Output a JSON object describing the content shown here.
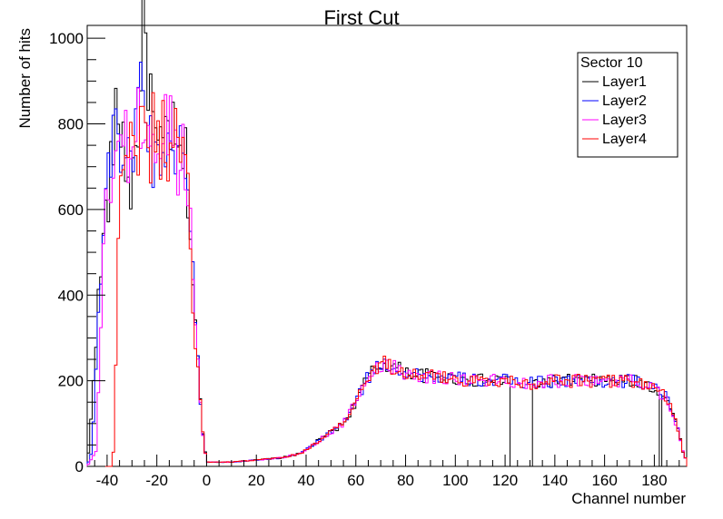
{
  "chart_data": {
    "type": "line",
    "title": "First Cut",
    "xlabel": "Channel number",
    "ylabel": "Number of hits",
    "xlim": [
      -48,
      193
    ],
    "ylim": [
      0,
      1030
    ],
    "x_ticks": [
      -40,
      -20,
      0,
      20,
      40,
      60,
      80,
      100,
      120,
      140,
      160,
      180
    ],
    "y_ticks": [
      0,
      200,
      400,
      600,
      800,
      1000
    ],
    "bin_width": 1,
    "grid": false,
    "legend": {
      "title": "Sector 10",
      "placement": "top-right",
      "entries": [
        "Layer1",
        "Layer2",
        "Layer3",
        "Layer4"
      ]
    },
    "series": [
      {
        "name": "Layer1",
        "color": "#000000",
        "profile": [
          [
            -48,
            0
          ],
          [
            -47,
            60
          ],
          [
            -45,
            260
          ],
          [
            -43,
            420
          ],
          [
            -41,
            560
          ],
          [
            -39,
            660
          ],
          [
            -37,
            780
          ],
          [
            -35,
            830
          ],
          [
            -33,
            740
          ],
          [
            -31,
            640
          ],
          [
            -29,
            700
          ],
          [
            -27,
            860
          ],
          [
            -25,
            1030
          ],
          [
            -23,
            900
          ],
          [
            -21,
            760
          ],
          [
            -19,
            700
          ],
          [
            -17,
            760
          ],
          [
            -15,
            820
          ],
          [
            -13,
            740
          ],
          [
            -11,
            700
          ],
          [
            -9,
            740
          ],
          [
            -7,
            620
          ],
          [
            -6,
            480
          ],
          [
            -4,
            300
          ],
          [
            -2,
            100
          ],
          [
            0,
            10
          ],
          [
            10,
            10
          ],
          [
            20,
            15
          ],
          [
            30,
            20
          ],
          [
            38,
            30
          ],
          [
            45,
            60
          ],
          [
            50,
            80
          ],
          [
            55,
            100
          ],
          [
            60,
            150
          ],
          [
            64,
            200
          ],
          [
            68,
            230
          ],
          [
            72,
            240
          ],
          [
            80,
            220
          ],
          [
            90,
            210
          ],
          [
            100,
            205
          ],
          [
            110,
            200
          ],
          [
            120,
            200
          ],
          [
            130,
            195
          ],
          [
            140,
            200
          ],
          [
            150,
            200
          ],
          [
            160,
            200
          ],
          [
            170,
            200
          ],
          [
            178,
            190
          ],
          [
            185,
            160
          ],
          [
            190,
            80
          ],
          [
            192,
            20
          ]
        ],
        "dips": [
          [
            122,
            130
          ],
          [
            182
          ]
        ]
      },
      {
        "name": "Layer2",
        "color": "#0000ff",
        "profile": [
          [
            -48,
            0
          ],
          [
            -46,
            40
          ],
          [
            -45,
            180
          ],
          [
            -43,
            400
          ],
          [
            -41,
            600
          ],
          [
            -39,
            700
          ],
          [
            -37,
            890
          ],
          [
            -35,
            760
          ],
          [
            -33,
            650
          ],
          [
            -31,
            720
          ],
          [
            -29,
            800
          ],
          [
            -27,
            900
          ],
          [
            -25,
            860
          ],
          [
            -23,
            780
          ],
          [
            -21,
            700
          ],
          [
            -19,
            720
          ],
          [
            -17,
            760
          ],
          [
            -15,
            800
          ],
          [
            -13,
            720
          ],
          [
            -11,
            700
          ],
          [
            -9,
            800
          ],
          [
            -7,
            620
          ],
          [
            -6,
            480
          ],
          [
            -4,
            300
          ],
          [
            -2,
            100
          ],
          [
            0,
            10
          ],
          [
            10,
            10
          ],
          [
            20,
            15
          ],
          [
            30,
            20
          ],
          [
            38,
            30
          ],
          [
            45,
            60
          ],
          [
            50,
            80
          ],
          [
            55,
            100
          ],
          [
            60,
            150
          ],
          [
            64,
            200
          ],
          [
            68,
            230
          ],
          [
            72,
            240
          ],
          [
            80,
            220
          ],
          [
            90,
            210
          ],
          [
            100,
            205
          ],
          [
            110,
            200
          ],
          [
            120,
            200
          ],
          [
            130,
            195
          ],
          [
            140,
            200
          ],
          [
            150,
            200
          ],
          [
            160,
            200
          ],
          [
            170,
            200
          ],
          [
            178,
            190
          ],
          [
            185,
            160
          ],
          [
            190,
            80
          ],
          [
            192,
            20
          ]
        ],
        "dips": []
      },
      {
        "name": "Layer3",
        "color": "#ff00ff",
        "profile": [
          [
            -48,
            0
          ],
          [
            -44,
            40
          ],
          [
            -43,
            280
          ],
          [
            -42,
            420
          ],
          [
            -41,
            560
          ],
          [
            -39,
            650
          ],
          [
            -37,
            720
          ],
          [
            -35,
            800
          ],
          [
            -33,
            760
          ],
          [
            -31,
            700
          ],
          [
            -29,
            760
          ],
          [
            -27,
            820
          ],
          [
            -25,
            800
          ],
          [
            -23,
            760
          ],
          [
            -21,
            720
          ],
          [
            -19,
            740
          ],
          [
            -17,
            780
          ],
          [
            -15,
            820
          ],
          [
            -13,
            740
          ],
          [
            -11,
            700
          ],
          [
            -9,
            760
          ],
          [
            -7,
            620
          ],
          [
            -6,
            480
          ],
          [
            -4,
            300
          ],
          [
            -2,
            100
          ],
          [
            0,
            10
          ],
          [
            10,
            10
          ],
          [
            20,
            15
          ],
          [
            30,
            20
          ],
          [
            38,
            30
          ],
          [
            45,
            60
          ],
          [
            50,
            80
          ],
          [
            55,
            100
          ],
          [
            60,
            150
          ],
          [
            64,
            200
          ],
          [
            68,
            230
          ],
          [
            72,
            240
          ],
          [
            80,
            220
          ],
          [
            90,
            210
          ],
          [
            100,
            205
          ],
          [
            110,
            200
          ],
          [
            120,
            200
          ],
          [
            130,
            195
          ],
          [
            140,
            200
          ],
          [
            150,
            200
          ],
          [
            160,
            200
          ],
          [
            170,
            200
          ],
          [
            178,
            190
          ],
          [
            185,
            160
          ],
          [
            190,
            80
          ],
          [
            192,
            20
          ]
        ],
        "dips": []
      },
      {
        "name": "Layer4",
        "color": "#ff0000",
        "profile": [
          [
            -48,
            0
          ],
          [
            -38,
            0
          ],
          [
            -37,
            70
          ],
          [
            -36,
            400
          ],
          [
            -35,
            640
          ],
          [
            -33,
            800
          ],
          [
            -31,
            700
          ],
          [
            -29,
            820
          ],
          [
            -27,
            720
          ],
          [
            -25,
            900
          ],
          [
            -23,
            660
          ],
          [
            -21,
            820
          ],
          [
            -19,
            700
          ],
          [
            -17,
            840
          ],
          [
            -15,
            660
          ],
          [
            -13,
            800
          ],
          [
            -11,
            740
          ],
          [
            -9,
            780
          ],
          [
            -7,
            600
          ],
          [
            -6,
            400
          ],
          [
            -4,
            280
          ],
          [
            -2,
            100
          ],
          [
            0,
            10
          ],
          [
            10,
            10
          ],
          [
            20,
            15
          ],
          [
            30,
            20
          ],
          [
            38,
            30
          ],
          [
            45,
            60
          ],
          [
            50,
            80
          ],
          [
            55,
            100
          ],
          [
            60,
            150
          ],
          [
            64,
            200
          ],
          [
            68,
            230
          ],
          [
            72,
            240
          ],
          [
            80,
            220
          ],
          [
            90,
            210
          ],
          [
            100,
            205
          ],
          [
            110,
            200
          ],
          [
            120,
            200
          ],
          [
            130,
            195
          ],
          [
            140,
            200
          ],
          [
            150,
            200
          ],
          [
            160,
            200
          ],
          [
            170,
            200
          ],
          [
            178,
            190
          ],
          [
            185,
            160
          ],
          [
            190,
            80
          ],
          [
            192,
            20
          ]
        ],
        "dips": []
      }
    ]
  }
}
